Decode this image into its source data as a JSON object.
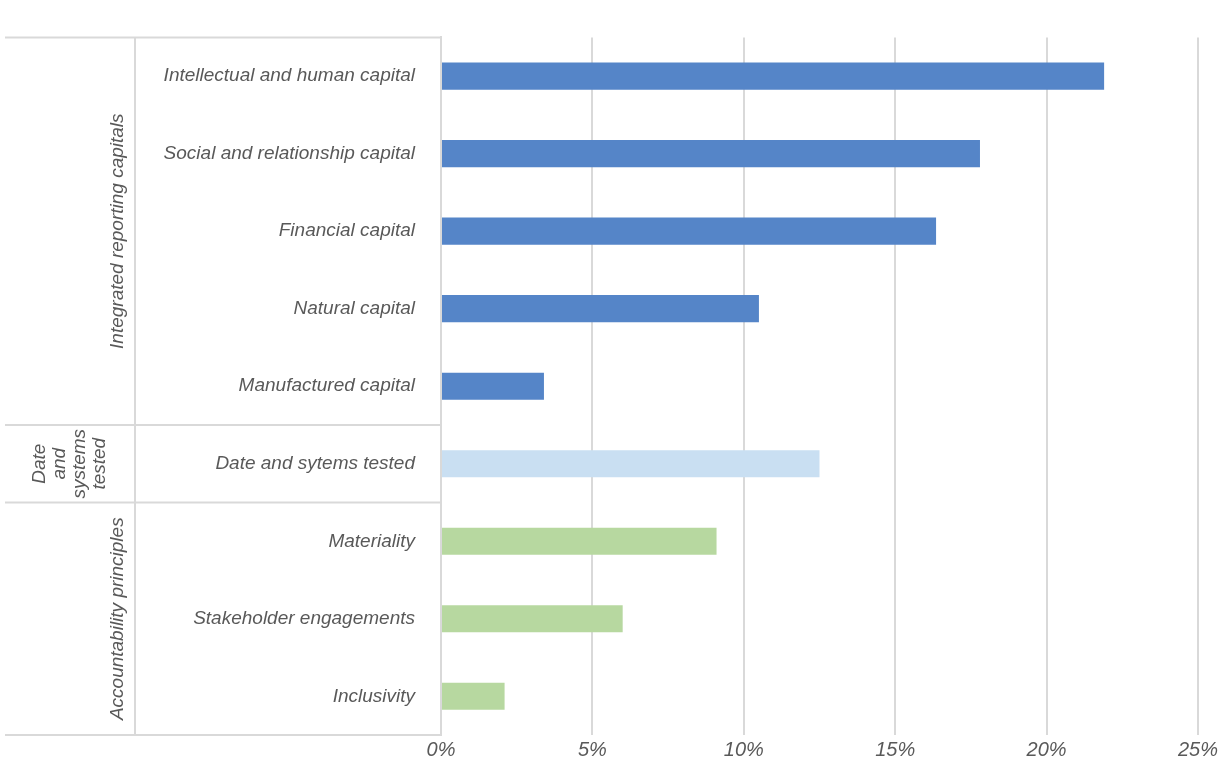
{
  "chart_data": {
    "type": "bar",
    "orientation": "horizontal",
    "categories": [
      "Intellectual and human capital",
      "Social and relationship capital",
      "Financial capital",
      "Natural capital",
      "Manufactured capital",
      "Date and sytems tested",
      "Materiality",
      "Stakeholder engagements",
      "Inclusivity"
    ],
    "values": [
      21.9,
      17.8,
      16.35,
      10.5,
      3.4,
      12.5,
      9.1,
      6.0,
      2.1
    ],
    "colors": [
      "#5585c8",
      "#5585c8",
      "#5585c8",
      "#5585c8",
      "#5585c8",
      "#c9dff2",
      "#b7d8a0",
      "#b7d8a0",
      "#b7d8a0"
    ],
    "annotations": [
      "Integrated reporting capitals",
      "Date and systems tested",
      "Accountability principles"
    ],
    "xlim": [
      0,
      25
    ],
    "xticks": [
      {
        "value": 0,
        "label": "0%"
      },
      {
        "value": 5,
        "label": "5%"
      },
      {
        "value": 10,
        "label": "10%"
      },
      {
        "value": 15,
        "label": "15%"
      },
      {
        "value": 20,
        "label": "20%"
      },
      {
        "value": 25,
        "label": "25%"
      }
    ],
    "grid": "x",
    "legend": false
  }
}
